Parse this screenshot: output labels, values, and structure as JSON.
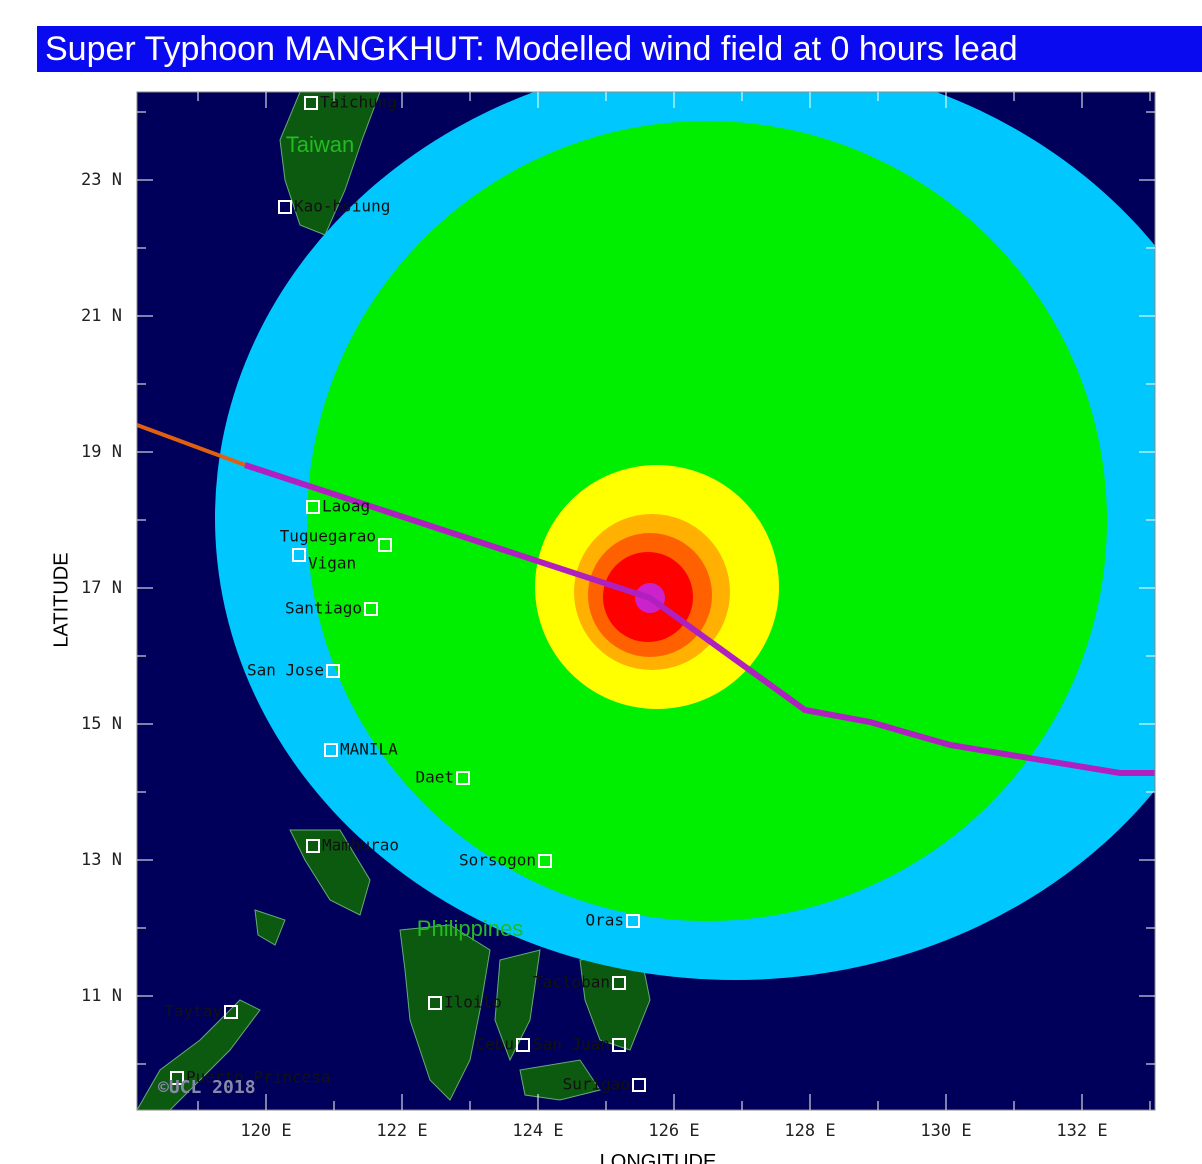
{
  "header": {
    "title": "Super Typhoon MANGKHUT: Modelled wind field at 0 hours lead"
  },
  "map": {
    "x_axis_label": "LONGITUDE",
    "y_axis_label": "LATITUDE",
    "x_ticks": [
      "120 E",
      "122 E",
      "124 E",
      "126 E",
      "128 E",
      "130 E",
      "132 E"
    ],
    "y_ticks": [
      "23 N",
      "21 N",
      "19 N",
      "17 N",
      "15 N",
      "13 N",
      "11 N"
    ],
    "regions": [
      "Taiwan",
      "Philippines"
    ],
    "cities": [
      "Taichung",
      "Kao-hsiung",
      "Laoag",
      "Tuguegarao",
      "Vigan",
      "Santiago",
      "San Jose",
      "MANILA",
      "Daet",
      "Mamburao",
      "Sorsogon",
      "Oras",
      "Tacloban",
      "Iloilo",
      "Cebu",
      "San Juan",
      "Surigao",
      "Taytay",
      "Puerto Princesa"
    ],
    "copyright": "©UCL 2018"
  }
}
